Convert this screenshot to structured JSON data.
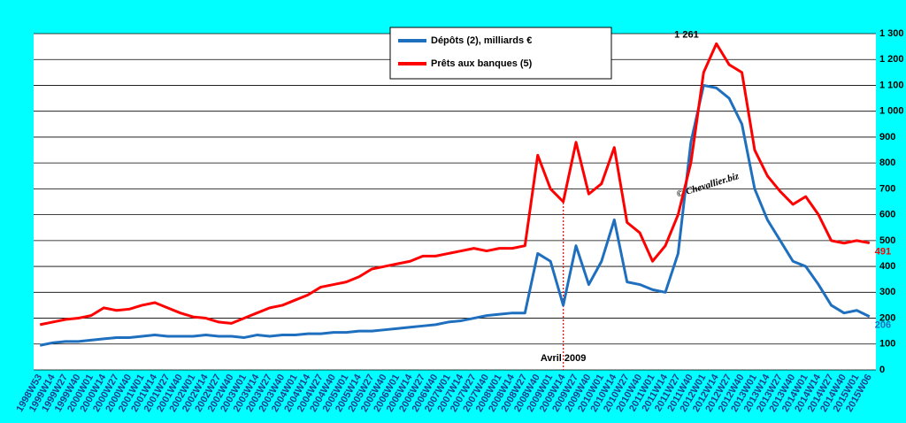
{
  "chart_data": {
    "type": "line",
    "categories": [
      "1998W53",
      "1999W14",
      "1999W27",
      "1999W40",
      "2000W01",
      "2000W14",
      "2000W27",
      "2000W40",
      "2001W01",
      "2001W14",
      "2001W27",
      "2001W40",
      "2002W01",
      "2002W14",
      "2002W27",
      "2002W40",
      "2003W01",
      "2003W14",
      "2003W27",
      "2003W40",
      "2004W01",
      "2004W14",
      "2004W27",
      "2004W40",
      "2005W01",
      "2005W14",
      "2005W27",
      "2005W40",
      "2006W01",
      "2006W14",
      "2006W27",
      "2006W40",
      "2007W01",
      "2007W14",
      "2007W27",
      "2007W40",
      "2008W01",
      "2008W14",
      "2008W27",
      "2008W40",
      "2009W01",
      "2009W14",
      "2009W27",
      "2009W40",
      "2010W01",
      "2010W14",
      "2010W27",
      "2010W40",
      "2011W01",
      "2011W14",
      "2011W27",
      "2011W40",
      "2012W01",
      "2012W14",
      "2012W27",
      "2012W40",
      "2013W01",
      "2013W14",
      "2013W27",
      "2013W40",
      "2014W01",
      "2014W14",
      "2014W27",
      "2014W40",
      "2015W01",
      "2015W06"
    ],
    "series": [
      {
        "name": "Dépôts (2), milliards  €",
        "color": "#1f6fbf",
        "values": [
          95,
          105,
          110,
          110,
          115,
          120,
          125,
          125,
          130,
          135,
          130,
          130,
          130,
          135,
          130,
          130,
          125,
          135,
          130,
          135,
          135,
          140,
          140,
          145,
          145,
          150,
          150,
          155,
          160,
          165,
          170,
          175,
          185,
          190,
          200,
          210,
          215,
          220,
          220,
          450,
          420,
          250,
          480,
          330,
          420,
          580,
          340,
          330,
          310,
          300,
          450,
          880,
          1100,
          1090,
          1050,
          950,
          700,
          580,
          500,
          420,
          400,
          330,
          250,
          220,
          230,
          206
        ]
      },
      {
        "name": "Prêts aux banques (5)",
        "color": "#ff0000",
        "values": [
          175,
          185,
          195,
          200,
          210,
          240,
          230,
          235,
          250,
          260,
          240,
          220,
          205,
          200,
          185,
          180,
          200,
          220,
          240,
          250,
          270,
          290,
          320,
          330,
          340,
          360,
          390,
          400,
          410,
          420,
          440,
          440,
          450,
          460,
          470,
          460,
          470,
          470,
          480,
          830,
          700,
          650,
          880,
          680,
          720,
          860,
          570,
          530,
          420,
          480,
          600,
          800,
          1150,
          1261,
          1180,
          1150,
          850,
          750,
          690,
          640,
          670,
          600,
          500,
          490,
          500,
          491
        ]
      }
    ],
    "ylim": [
      0,
      1300
    ],
    "yticks": [
      0,
      100,
      200,
      300,
      400,
      500,
      600,
      700,
      800,
      900,
      {
        "value": 1000,
        "label": "1 000"
      },
      {
        "value": 1100,
        "label": "1 100"
      },
      {
        "value": 1200,
        "label": "1 200"
      },
      {
        "value": 1300,
        "label": "1 300"
      }
    ],
    "grid": true,
    "annotations": [
      {
        "text": "1 261",
        "x": "2012W14",
        "y": 1261,
        "color": "#000000"
      },
      {
        "text": "491",
        "x": "2015W06",
        "y": 491,
        "color": "#ff0000"
      },
      {
        "text": "206",
        "x": "2015W06",
        "y": 206,
        "color": "#1f6fbf"
      }
    ],
    "marker_line": {
      "text": "Avril 2009",
      "x": "2009W14"
    },
    "watermark": "© Chevallier.biz"
  }
}
